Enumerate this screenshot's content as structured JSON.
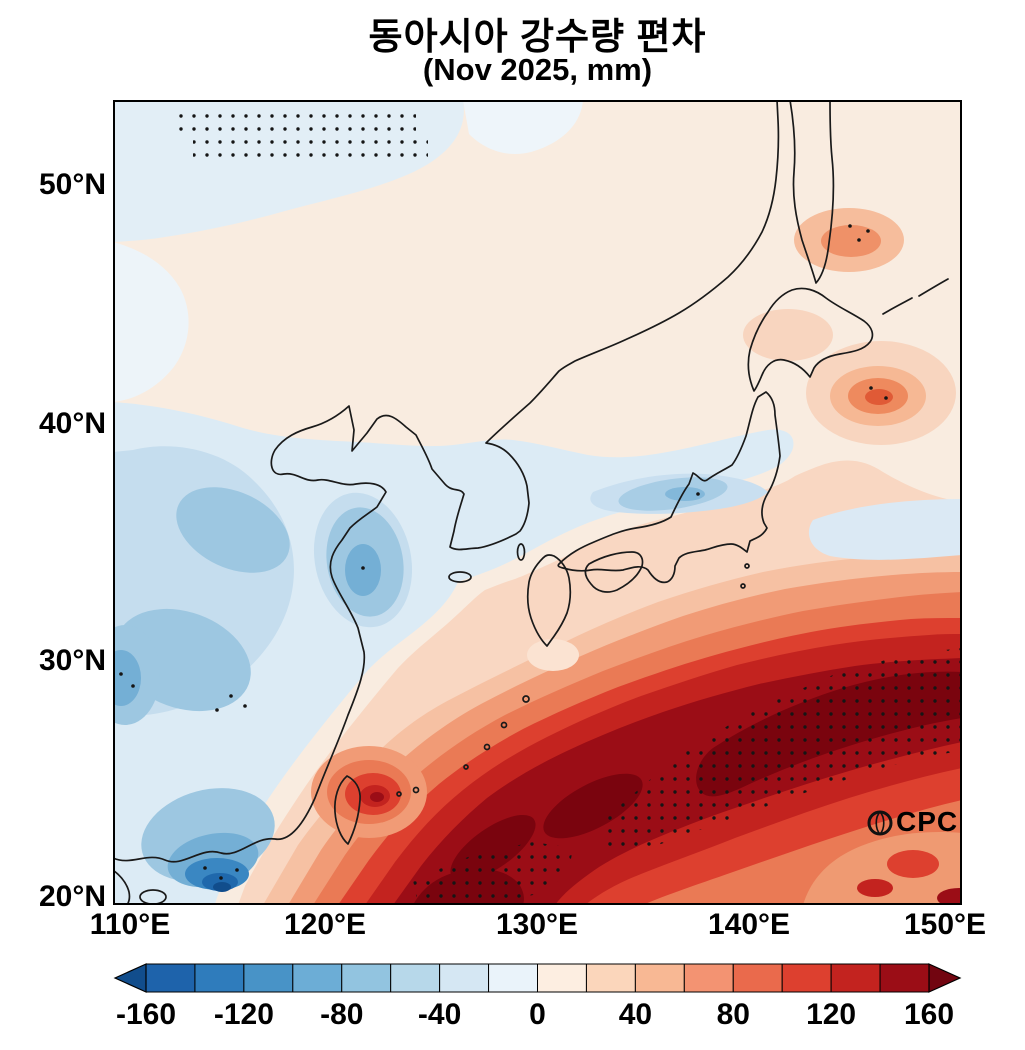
{
  "figure": {
    "title": "동아시아 강수량 편차",
    "subtitle": "(Nov 2025, mm)",
    "watermark": "CPC"
  },
  "axes": {
    "y_ticks": [
      "50°N",
      "40°N",
      "30°N",
      "20°N"
    ],
    "x_ticks": [
      "110°E",
      "120°E",
      "130°E",
      "140°E",
      "150°E"
    ]
  },
  "colorbar": {
    "tick_labels": [
      "-160",
      "-120",
      "-80",
      "-40",
      "0",
      "40",
      "80",
      "120",
      "160"
    ],
    "levels": [
      -160,
      -140,
      -120,
      -100,
      -80,
      -60,
      -40,
      -20,
      0,
      20,
      40,
      60,
      80,
      100,
      120,
      140,
      160
    ],
    "arrow_left_color": "#114d8c",
    "arrow_right_color": "#720510",
    "segment_colors": [
      "#1e63ab",
      "#2f7cbc",
      "#4893c7",
      "#6cadd6",
      "#92c4e0",
      "#b7d8ea",
      "#d5e7f3",
      "#eaf3fa",
      "#fdeee1",
      "#fbd6bb",
      "#f8b894",
      "#f39372",
      "#ea6a4c",
      "#dd402f",
      "#c3231f",
      "#9b0d16"
    ]
  },
  "chart_data": {
    "type": "heatmap",
    "title": "동아시아 강수량 편차",
    "subtitle": "(Nov 2025, mm)",
    "units": "mm",
    "period": "Nov 2025",
    "x_axis": {
      "kind": "longitude",
      "ticks": [
        "110°E",
        "120°E",
        "130°E",
        "140°E",
        "150°E"
      ],
      "range_deg": [
        110,
        150
      ]
    },
    "y_axis": {
      "kind": "latitude",
      "ticks": [
        "20°N",
        "30°N",
        "40°N",
        "50°N"
      ],
      "range_deg": [
        20,
        53.5
      ]
    },
    "colorbar": {
      "levels": [
        -160,
        -140,
        -120,
        -100,
        -80,
        -60,
        -40,
        -20,
        0,
        20,
        40,
        60,
        80,
        100,
        120,
        140,
        160
      ],
      "label_step": 40,
      "extend": "both"
    },
    "anomaly_centers": [
      {
        "region": "oceanic band south and southeast of Japan (Kuroshio region)",
        "lon": "125E-150E",
        "lat": "20N-34N",
        "sign": "positive",
        "value_mm": "140 to >160",
        "stippled": true
      },
      {
        "region": "east of Taiwan",
        "lon": "~122E",
        "lat": "~24N",
        "sign": "positive",
        "value_mm": "100-160"
      },
      {
        "region": "eastern China and Yellow Sea",
        "lon": "110E-124E",
        "lat": "26N-38N",
        "sign": "negative",
        "value_mm": "-40 to -80"
      },
      {
        "region": "south China coast near 114E, 20N",
        "lon": "~114E",
        "lat": "~20N",
        "sign": "negative",
        "value_mm": "-120 to -160",
        "stippled": true
      },
      {
        "region": "Sea of Japan",
        "lon": "133E-138E",
        "lat": "37N-39N",
        "sign": "negative",
        "value_mm": "-40 to -60"
      },
      {
        "region": "east of northern Honshu",
        "lon": "~146E",
        "lat": "~41N",
        "sign": "positive",
        "value_mm": "80-120"
      },
      {
        "region": "southern Sakhalin",
        "lon": "144E-146E",
        "lat": "47N-48N",
        "sign": "positive",
        "value_mm": "40-80"
      },
      {
        "region": "most of domain north of 44N",
        "sign": "weak positive",
        "value_mm": "0 to 40"
      },
      {
        "region": "northwest corner of domain",
        "lon": "110E-124E",
        "lat": "51N-53N",
        "sign": "weak negative",
        "value_mm": "0 to -40",
        "stippled": true
      },
      {
        "region": "bottom-right corner (southeast ocean)",
        "lon": "143E-150E",
        "lat": "20N-23N",
        "sign": "positive",
        "value_mm": "40-100"
      }
    ],
    "stippling": "small black dots overlaid on parts of the field (NW corner and the strong positive band)",
    "grid": false,
    "legend_position": "horizontal colorbar below map"
  }
}
